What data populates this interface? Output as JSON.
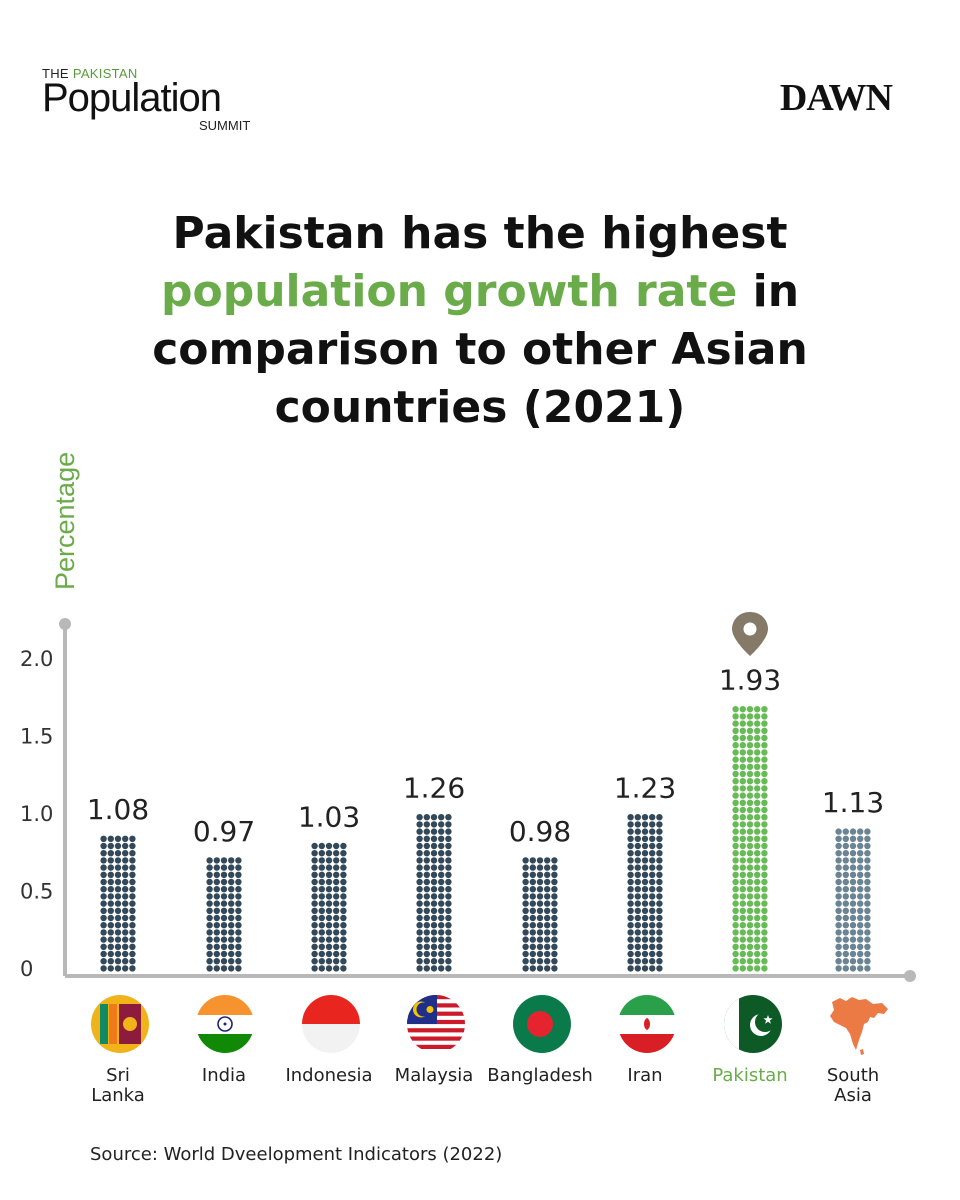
{
  "logo_left": {
    "the": "THE",
    "pakistan": "PAKISTAN",
    "main": "Population",
    "sub": "SUMMIT"
  },
  "logo_right": "DAWN",
  "headline": {
    "line1": "Pakistan has the highest",
    "line2_highlight": "population growth rate",
    "line2_rest": " in",
    "line3": "comparison to other Asian",
    "line4": "countries (2021)"
  },
  "source": "Source: World Dveelopment Indicators (2022)",
  "colors": {
    "accent": "#6aab4a",
    "dot_dark": "#33495a",
    "dot_light": "#6a8494",
    "dot_green": "#66bb55"
  },
  "chart_data": {
    "type": "bar",
    "ylabel": "Percentage",
    "yticks": [
      "0",
      "0.5",
      "1.0",
      "1.5",
      "2.0"
    ],
    "ylim": [
      0,
      2.0
    ],
    "categories": [
      "Sri Lanka",
      "India",
      "Indonesia",
      "Malaysia",
      "Bangladesh",
      "Iran",
      "Pakistan",
      "South Asia"
    ],
    "category_lines": [
      [
        "Sri",
        "Lanka"
      ],
      [
        "India"
      ],
      [
        "Indonesia"
      ],
      [
        "Malaysia"
      ],
      [
        "Bangladesh"
      ],
      [
        "Iran"
      ],
      [
        "Pakistan"
      ],
      [
        "South",
        "Asia"
      ]
    ],
    "values": [
      1.08,
      0.97,
      1.03,
      1.26,
      0.98,
      1.23,
      1.93,
      1.13
    ],
    "value_labels": [
      "1.08",
      "0.97",
      "1.03",
      "1.26",
      "0.98",
      "1.23",
      "1.93",
      "1.13"
    ],
    "highlight": "Pakistan",
    "icons": [
      "sri-lanka-flag-icon",
      "india-flag-icon",
      "indonesia-flag-icon",
      "malaysia-flag-icon",
      "bangladesh-flag-icon",
      "iran-flag-icon",
      "pakistan-flag-icon",
      "south-asia-map-icon",
      "map-pin-icon"
    ],
    "grid": false
  }
}
